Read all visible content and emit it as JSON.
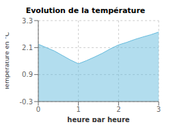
{
  "chart_data": {
    "type": "area",
    "title": "Evolution de la température",
    "xlabel": "heure par heure",
    "ylabel": "Température en °C",
    "x": [
      0,
      0.2,
      0.4,
      0.6,
      0.8,
      1.0,
      1.2,
      1.4,
      1.6,
      1.8,
      2.0,
      2.2,
      2.4,
      2.6,
      2.8,
      3.0
    ],
    "values": [
      2.25,
      2.1,
      1.95,
      1.75,
      1.55,
      1.38,
      1.52,
      1.68,
      1.85,
      2.05,
      2.22,
      2.33,
      2.46,
      2.57,
      2.67,
      2.79
    ],
    "color": "#66bbdd",
    "xlim": [
      0,
      3
    ],
    "ylim": [
      -0.3,
      3.3
    ],
    "xticks": [
      0,
      1,
      2,
      3
    ],
    "yticks": [
      -0.3,
      0.9,
      2.1,
      3.3
    ],
    "grid": true
  }
}
